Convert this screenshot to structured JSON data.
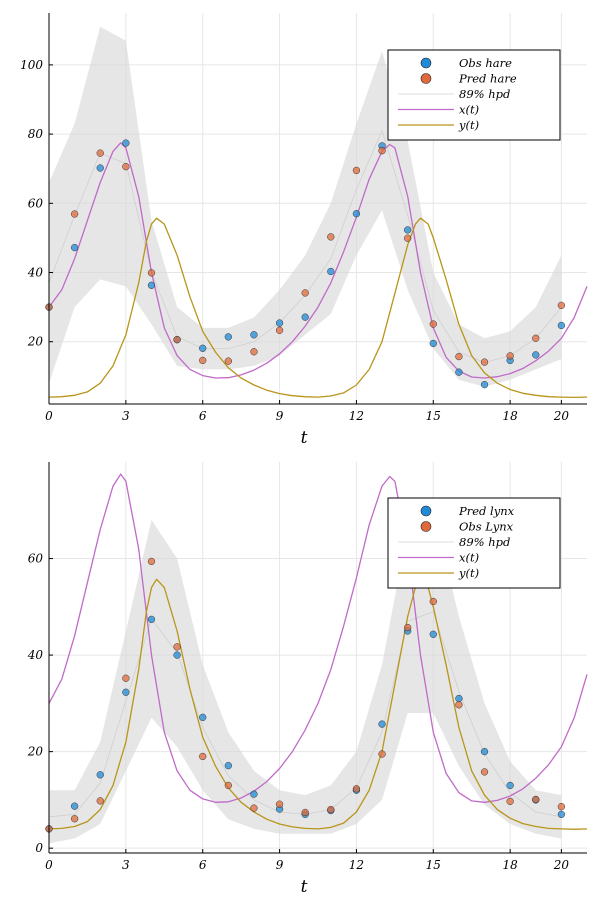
{
  "chart_data": [
    {
      "type": "scatter",
      "title": "",
      "xlabel": "t",
      "ylabel": "",
      "xlim": [
        0,
        21
      ],
      "ylim": [
        2,
        115
      ],
      "xticks": [
        0,
        3,
        6,
        9,
        12,
        15,
        18,
        20
      ],
      "yticks": [
        20,
        40,
        60,
        80,
        100
      ],
      "grid": true,
      "legend_position": "top-right",
      "legend": [
        "Obs hare",
        "Pred hare",
        "89% hpd",
        "x(t)",
        "y(t)"
      ],
      "band": {
        "name": "89% hpd",
        "x": [
          0,
          1,
          2,
          3,
          4,
          5,
          6,
          7,
          8,
          9,
          10,
          11,
          12,
          13,
          14,
          15,
          16,
          17,
          18,
          19,
          20
        ],
        "lower": [
          8,
          30,
          38,
          36,
          25,
          13,
          12,
          12,
          13,
          16,
          22,
          28,
          45,
          58,
          35,
          18,
          9,
          7,
          9,
          12,
          15
        ],
        "upper": [
          66,
          83,
          111,
          107,
          55,
          30,
          24,
          24,
          27,
          35,
          45,
          60,
          83,
          104,
          78,
          40,
          25,
          21,
          23,
          30,
          45
        ]
      },
      "series": [
        {
          "name": "Obs hare",
          "kind": "points",
          "color": "#1f8ad6",
          "x": [
            0,
            1,
            2,
            3,
            4,
            5,
            6,
            7,
            8,
            9,
            10,
            11,
            12,
            13,
            14,
            15,
            16,
            17,
            18,
            19,
            20
          ],
          "y": [
            30,
            47.2,
            70.2,
            77.4,
            36.3,
            20.6,
            18.1,
            21.4,
            22,
            25.4,
            27.1,
            40.3,
            57,
            76.6,
            52.3,
            19.5,
            11.2,
            7.6,
            14.6,
            16.2,
            24.7
          ]
        },
        {
          "name": "Pred hare",
          "kind": "points",
          "color": "#e06a3b",
          "x": [
            0,
            1,
            2,
            3,
            4,
            5,
            6,
            7,
            8,
            9,
            10,
            11,
            12,
            13,
            14,
            15,
            16,
            17,
            18,
            19,
            20
          ],
          "y": [
            30,
            56.9,
            74.5,
            70.6,
            39.9,
            20.6,
            14.6,
            14.4,
            17.1,
            23.3,
            34.1,
            50.3,
            69.5,
            75.2,
            49.9,
            25.1,
            15.7,
            14.1,
            15.9,
            21,
            30.5
          ]
        },
        {
          "name": "x(t)",
          "kind": "curve",
          "color": "#c06ac9",
          "x": [
            0,
            0.5,
            1,
            1.5,
            2,
            2.5,
            2.8,
            3,
            3.5,
            4,
            4.5,
            5,
            5.5,
            6,
            6.5,
            7,
            7.5,
            8,
            8.5,
            9,
            9.5,
            10,
            10.5,
            11,
            11.5,
            12,
            12.5,
            13,
            13.3,
            13.5,
            14,
            14.5,
            15,
            15.5,
            16,
            16.5,
            17,
            17.5,
            18,
            18.5,
            19,
            19.5,
            20,
            20.5,
            21
          ],
          "y": [
            30,
            35,
            44,
            55,
            66,
            75,
            77.5,
            76,
            62,
            40,
            24,
            16,
            12,
            10.2,
            9.5,
            9.6,
            10.4,
            11.8,
            13.8,
            16.5,
            20,
            24.5,
            30,
            37,
            46,
            56,
            67,
            75,
            77,
            76,
            62,
            40,
            24,
            15.5,
            11.5,
            9.8,
            9.5,
            9.9,
            10.8,
            12.3,
            14.5,
            17.3,
            21,
            27,
            36
          ]
        },
        {
          "name": "y(t)",
          "kind": "curve",
          "color": "#b8951a",
          "x": [
            0,
            0.5,
            1,
            1.5,
            2,
            2.5,
            3,
            3.5,
            3.8,
            4,
            4.2,
            4.5,
            5,
            5.5,
            6,
            6.5,
            7,
            7.5,
            8,
            8.5,
            9,
            9.5,
            10,
            10.5,
            11,
            11.5,
            12,
            12.5,
            13,
            13.5,
            14,
            14.3,
            14.5,
            14.8,
            15,
            15.5,
            16,
            16.5,
            17,
            17.5,
            18,
            18.5,
            19,
            19.5,
            20,
            20.5,
            21
          ],
          "y": [
            4,
            4.1,
            4.5,
            5.5,
            8,
            13,
            22,
            37,
            49,
            54,
            55.7,
            54,
            45,
            33,
            23,
            17,
            12.5,
            9.5,
            7.5,
            6,
            5,
            4.4,
            4.1,
            4,
            4.3,
            5.2,
            7.5,
            12,
            20,
            34,
            48,
            54,
            55.7,
            54,
            50,
            38,
            25,
            16,
            11,
            8,
            6.2,
            5.1,
            4.5,
            4.1,
            4,
            3.9,
            4
          ]
        }
      ]
    },
    {
      "type": "scatter",
      "title": "",
      "xlabel": "t",
      "ylabel": "",
      "xlim": [
        0,
        21
      ],
      "ylim": [
        -1,
        80
      ],
      "xticks": [
        0,
        3,
        6,
        9,
        12,
        15,
        18,
        20
      ],
      "yticks": [
        0,
        20,
        40,
        60
      ],
      "grid": true,
      "legend_position": "top-right",
      "legend": [
        "Pred lynx",
        "Obs Lynx",
        "89% hpd",
        "x(t)",
        "y(t)"
      ],
      "band": {
        "name": "89% hpd",
        "x": [
          0,
          1,
          2,
          3,
          4,
          5,
          6,
          7,
          8,
          9,
          10,
          11,
          12,
          13,
          14,
          15,
          16,
          17,
          18,
          19,
          20
        ],
        "lower": [
          1,
          2,
          5,
          16,
          27,
          21,
          12,
          6,
          4,
          3,
          3,
          3,
          5,
          10,
          28,
          28,
          17,
          9,
          5,
          3,
          2
        ],
        "upper": [
          12,
          12,
          22,
          45,
          68,
          60,
          38,
          24,
          16,
          12,
          11,
          13,
          20,
          38,
          66,
          70,
          48,
          30,
          18,
          12,
          11
        ]
      },
      "series": [
        {
          "name": "Pred lynx",
          "kind": "points",
          "color": "#1f8ad6",
          "x": [
            0,
            1,
            2,
            3,
            4,
            5,
            6,
            7,
            8,
            9,
            10,
            11,
            12,
            13,
            14,
            15,
            16,
            17,
            18,
            19,
            20
          ],
          "y": [
            4,
            8.7,
            15.2,
            32.3,
            47.4,
            40,
            27.1,
            17.1,
            11.2,
            8.1,
            7,
            7.8,
            12,
            25.7,
            45,
            44.3,
            31,
            20,
            13,
            10,
            7
          ]
        },
        {
          "name": "Obs Lynx",
          "kind": "points",
          "color": "#e06a3b",
          "x": [
            0,
            1,
            2,
            3,
            4,
            5,
            6,
            7,
            8,
            9,
            10,
            11,
            12,
            13,
            14,
            15,
            16,
            17,
            18,
            19,
            20
          ],
          "y": [
            4,
            6.1,
            9.8,
            35.2,
            59.4,
            41.7,
            19,
            13,
            8.3,
            9.1,
            7.4,
            8,
            12.3,
            19.5,
            45.7,
            51.1,
            29.7,
            15.8,
            9.7,
            10.1,
            8.6
          ]
        },
        {
          "name": "x(t)",
          "kind": "curve",
          "color": "#c06ac9",
          "x": [
            0,
            0.5,
            1,
            1.5,
            2,
            2.5,
            2.8,
            3,
            3.5,
            4,
            4.5,
            5,
            5.5,
            6,
            6.5,
            7,
            7.5,
            8,
            8.5,
            9,
            9.5,
            10,
            10.5,
            11,
            11.5,
            12,
            12.5,
            13,
            13.3,
            13.5,
            14,
            14.5,
            15,
            15.5,
            16,
            16.5,
            17,
            17.5,
            18,
            18.5,
            19,
            19.5,
            20,
            20.5,
            21
          ],
          "y": [
            30,
            35,
            44,
            55,
            66,
            75,
            77.5,
            76,
            62,
            40,
            24,
            16,
            12,
            10.2,
            9.5,
            9.6,
            10.4,
            11.8,
            13.8,
            16.5,
            20,
            24.5,
            30,
            37,
            46,
            56,
            67,
            75,
            77,
            76,
            62,
            40,
            24,
            15.5,
            11.5,
            9.8,
            9.5,
            9.9,
            10.8,
            12.3,
            14.5,
            17.3,
            21,
            27,
            36
          ]
        },
        {
          "name": "y(t)",
          "kind": "curve",
          "color": "#b8951a",
          "x": [
            0,
            0.5,
            1,
            1.5,
            2,
            2.5,
            3,
            3.5,
            3.8,
            4,
            4.2,
            4.5,
            5,
            5.5,
            6,
            6.5,
            7,
            7.5,
            8,
            8.5,
            9,
            9.5,
            10,
            10.5,
            11,
            11.5,
            12,
            12.5,
            13,
            13.5,
            14,
            14.3,
            14.5,
            14.8,
            15,
            15.5,
            16,
            16.5,
            17,
            17.5,
            18,
            18.5,
            19,
            19.5,
            20,
            20.5,
            21
          ],
          "y": [
            4,
            4.1,
            4.5,
            5.5,
            8,
            13,
            22,
            37,
            49,
            54,
            55.7,
            54,
            45,
            33,
            23,
            17,
            12.5,
            9.5,
            7.5,
            6,
            5,
            4.4,
            4.1,
            4,
            4.3,
            5.2,
            7.5,
            12,
            20,
            34,
            48,
            54,
            55.7,
            54,
            50,
            38,
            25,
            16,
            11,
            8,
            6.2,
            5.1,
            4.5,
            4.1,
            4,
            3.9,
            4
          ]
        }
      ]
    }
  ]
}
